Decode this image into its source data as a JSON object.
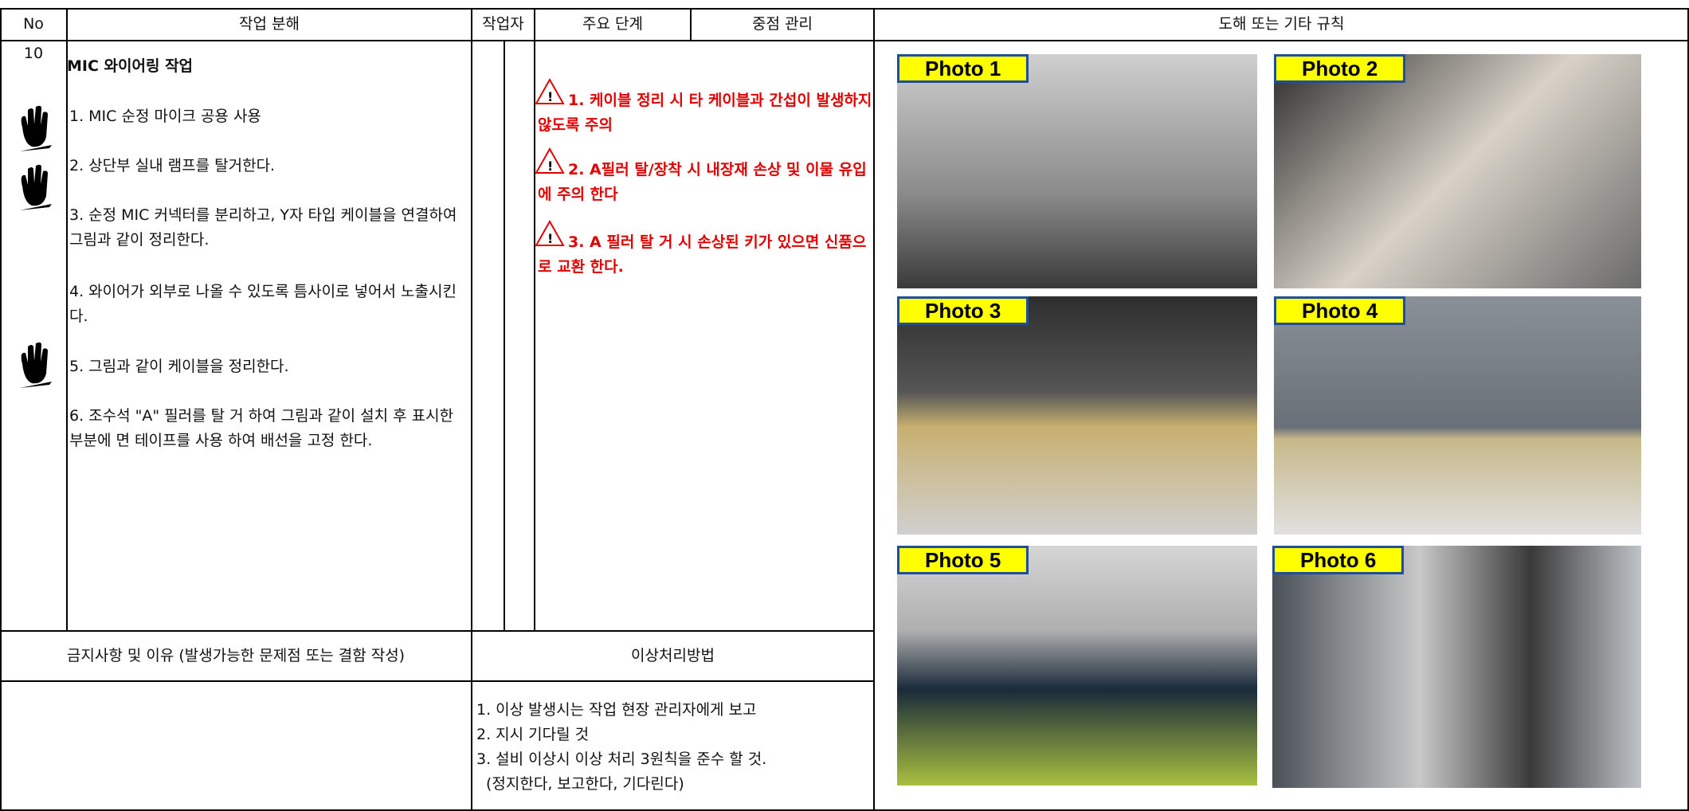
{
  "header": {
    "columns": [
      "No",
      "작업 분해",
      "작업자",
      "주요 단계",
      "중점 관리",
      "도해 또는 기타 규칙"
    ]
  },
  "task": {
    "no": "10",
    "title": "MIC 와이어링 작업",
    "steps": [
      "1. MIC 순정 마이크 공용 사용",
      "2. 상단부 실내 램프를 탈거한다.",
      "3. 순정 MIC 커넥터를 분리하고, Y자 타입 케이블을 연결하여 그림과 같이 정리한다.",
      "4. 와이어가 외부로 나올 수 있도록 틈사이로 넣어서 노출시킨다.",
      "5. 그림과 같이 케이블을 정리한다.",
      "6. 조수석 \"A\" 필러를 탈 거 하여 그림과 같이 설치 후 표시한 부분에 면 테이프를 사용 하여 배선을 고정 한다."
    ]
  },
  "warnings": [
    "1. 케이블 정리 시 타 케이블과 간섭이 발생하지 않도록 주의",
    "2. A필러 탈/장착 시 내장재 손상 및 이물 유입에 주의 한다",
    "3. A 필러 탈 거 시 손상된 키가 있으면 신품으로 교환 한다."
  ],
  "prohibition": {
    "header": "금지사항 및 이유 (발생가능한 문제점 또는 결함 작성)"
  },
  "abnormal": {
    "header": "이상처리방법",
    "lines": [
      "1. 이상 발생시는 작업 현장 관리자에게 보고",
      "2. 지시 기다릴 것",
      "3. 설비 이상시 이상 처리 3원칙을 준수 할 것.",
      "(정지한다, 보고한다, 기다린다)"
    ]
  },
  "photos": [
    "Photo 1",
    "Photo 2",
    "Photo 3",
    "Photo 4",
    "Photo 5",
    "Photo 6"
  ]
}
